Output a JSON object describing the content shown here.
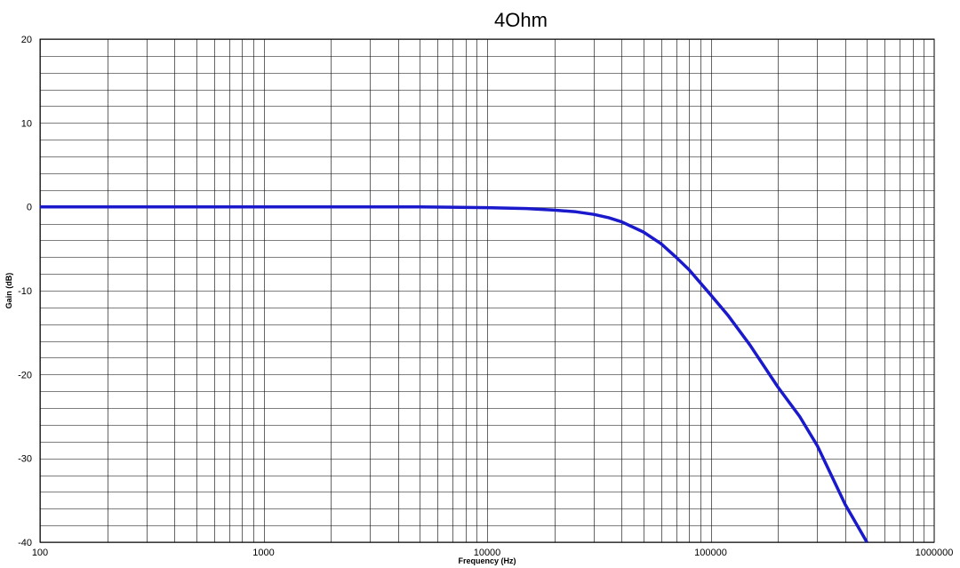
{
  "chart_data": {
    "type": "line",
    "title": "4Ohm",
    "xlabel": "Frequency (Hz)",
    "ylabel": "Gain (dB)",
    "x_scale": "log",
    "xlim": [
      100,
      1000000
    ],
    "ylim": [
      -40,
      20
    ],
    "x_ticks": [
      "100",
      "1000",
      "10000",
      "100000",
      "1000000"
    ],
    "y_ticks": [
      "20",
      "10",
      "0",
      "-10",
      "-20",
      "-30",
      "-40"
    ],
    "grid": true,
    "legend": "none",
    "series": [
      {
        "color": "#1a1acc",
        "x": [
          100,
          1000,
          5000,
          10000,
          15000,
          20000,
          25000,
          30000,
          35000,
          40000,
          50000,
          60000,
          70000,
          80000,
          100000,
          120000,
          150000,
          200000,
          250000,
          300000,
          400000,
          500000
        ],
        "y": [
          0,
          0,
          0,
          -0.1,
          -0.2,
          -0.4,
          -0.6,
          -0.9,
          -1.3,
          -1.8,
          -3,
          -4.4,
          -6,
          -7.5,
          -10.5,
          -13,
          -16.5,
          -21.5,
          -25,
          -28.5,
          -35.5,
          -40
        ]
      }
    ]
  }
}
